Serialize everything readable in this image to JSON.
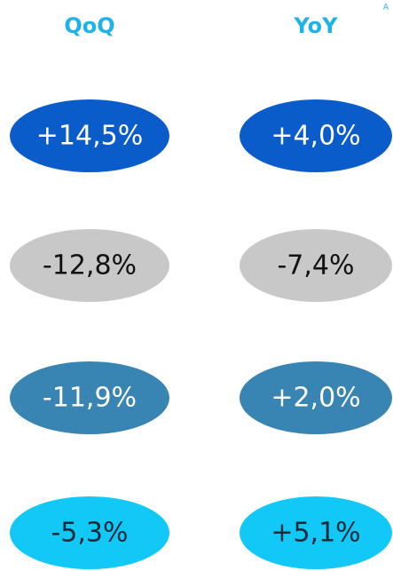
{
  "corner_text": "A",
  "columns": [
    "QoQ",
    "YoY"
  ],
  "rows": [
    {
      "color": "#0b5ccb",
      "text_color": "#ffffff",
      "values": [
        "+14,5%",
        "+4,0%"
      ]
    },
    {
      "color": "#c8c8c8",
      "text_color": "#111111",
      "values": [
        "-12,8%",
        "-7,4%"
      ]
    },
    {
      "color": "#3884b2",
      "text_color": "#ffffff",
      "values": [
        "-11,9%",
        "+2,0%"
      ]
    },
    {
      "color": "#12c8f6",
      "text_color": "#1a2a3a",
      "values": [
        "-5,3%",
        "+5,1%"
      ]
    }
  ]
}
